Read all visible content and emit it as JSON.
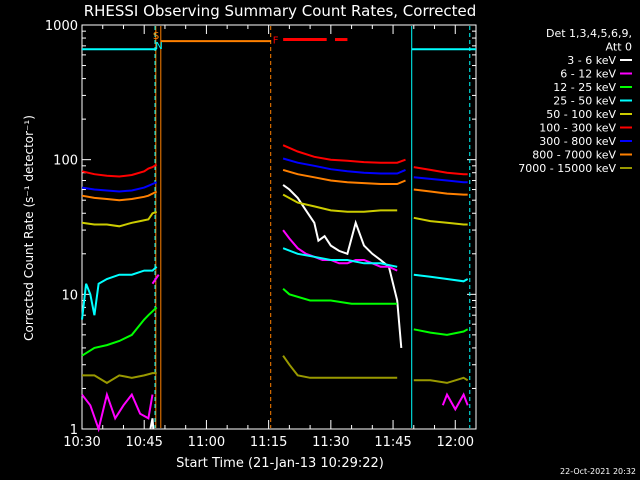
{
  "chart_data": {
    "type": "line",
    "title": "RHESSI Observing Summary Count Rates, Corrected",
    "xlabel": "Start Time (21-Jan-13 10:29:22)",
    "ylabel": "Corrected Count Rate (s⁻¹ detector⁻¹)",
    "y_scale": "log",
    "ylim": [
      1,
      1000
    ],
    "xlim_minutes_after_1030": [
      0,
      95
    ],
    "x_ticks": [
      "10:30",
      "10:45",
      "11:00",
      "11:15",
      "11:30",
      "11:45",
      "12:00"
    ],
    "x_tick_minutes": [
      0,
      15,
      30,
      45,
      60,
      75,
      90
    ],
    "y_ticks": [
      "1",
      "10",
      "100",
      "1000"
    ],
    "y_tick_values": [
      1,
      10,
      100,
      1000
    ],
    "legend_header": [
      "Det 1,3,4,5,6,9,",
      "Att 0"
    ],
    "legend_position": "outside-right",
    "series": [
      {
        "name": "3 - 6 keV",
        "color": "#ffffff",
        "segments": [
          {
            "x": [
              16.5,
              17.0,
              17.2
            ],
            "y": [
              1.0,
              1.2,
              1.0
            ]
          },
          {
            "x": [
              48.5,
              50,
              52,
              54,
              56,
              57,
              58.5,
              60,
              62,
              64,
              66,
              68,
              70,
              72,
              74,
              76,
              77
            ],
            "y": [
              65,
              60,
              52,
              42,
              34,
              25,
              27,
              23,
              21,
              20,
              34,
              23,
              20,
              18,
              16,
              9,
              4
            ]
          }
        ]
      },
      {
        "name": "6 - 12 keV",
        "color": "#ff00ff",
        "segments": [
          {
            "x": [
              0,
              2,
              4,
              6,
              8,
              10,
              12,
              14,
              16,
              17
            ],
            "y": [
              1.8,
              1.5,
              1.0,
              1.8,
              1.2,
              1.5,
              1.8,
              1.3,
              1.2,
              1.8
            ]
          },
          {
            "x": [
              17,
              18.5
            ],
            "y": [
              12,
              14
            ]
          },
          {
            "x": [
              48.5,
              50,
              52,
              54,
              56,
              58,
              60,
              62,
              64,
              66,
              68,
              70,
              72,
              74,
              76
            ],
            "y": [
              30,
              26,
              22,
              20,
              19,
              18,
              18,
              17,
              17,
              18,
              18,
              17,
              16,
              16,
              15
            ]
          },
          {
            "x": [
              87,
              88,
              90,
              92,
              93
            ],
            "y": [
              1.5,
              1.8,
              1.4,
              1.8,
              1.5
            ]
          }
        ]
      },
      {
        "name": "12 - 25 keV",
        "color": "#00ff00",
        "segments": [
          {
            "x": [
              0,
              3,
              6,
              9,
              12,
              15,
              16,
              18
            ],
            "y": [
              3.5,
              4.0,
              4.2,
              4.5,
              5.0,
              6.5,
              7,
              8
            ]
          },
          {
            "x": [
              48.5,
              50,
              55,
              60,
              65,
              70,
              75,
              76
            ],
            "y": [
              11,
              10,
              9,
              9,
              8.5,
              8.5,
              8.5,
              8.5
            ]
          },
          {
            "x": [
              80,
              84,
              88,
              92,
              93
            ],
            "y": [
              5.5,
              5.2,
              5.0,
              5.3,
              5.5
            ]
          }
        ]
      },
      {
        "name": "25 - 50 keV",
        "color": "#00ffff",
        "segments": [
          {
            "x": [
              0,
              1,
              2,
              3,
              4,
              6,
              9,
              12,
              15,
              17,
              18
            ],
            "y": [
              6.5,
              12,
              10,
              7,
              12,
              13,
              14,
              14,
              15,
              15,
              16
            ]
          },
          {
            "x": [
              48.5,
              52,
              56,
              60,
              64,
              68,
              72,
              76
            ],
            "y": [
              22,
              20,
              19,
              18,
              18,
              17,
              17,
              16
            ]
          },
          {
            "x": [
              80,
              84,
              88,
              92,
              93
            ],
            "y": [
              14,
              13.5,
              13,
              12.5,
              13
            ]
          }
        ]
      },
      {
        "name": "50 - 100 keV",
        "color": "#cccc00",
        "segments": [
          {
            "x": [
              0,
              3,
              6,
              9,
              12,
              14,
              16,
              17,
              18
            ],
            "y": [
              34,
              33,
              33,
              32,
              34,
              35,
              36,
              40,
              41
            ]
          },
          {
            "x": [
              48.5,
              52,
              56,
              60,
              64,
              68,
              72,
              76
            ],
            "y": [
              55,
              48,
              45,
              42,
              41,
              41,
              42,
              42
            ]
          },
          {
            "x": [
              80,
              84,
              88,
              92,
              93
            ],
            "y": [
              37,
              35,
              34,
              33,
              33
            ]
          }
        ]
      },
      {
        "name": "100 - 300 keV",
        "color": "#ff0000",
        "segments": [
          {
            "x": [
              0,
              3,
              6,
              9,
              12,
              15,
              16,
              17,
              18
            ],
            "y": [
              82,
              78,
              76,
              75,
              77,
              82,
              86,
              88,
              92
            ]
          },
          {
            "x": [
              48.5,
              52,
              56,
              60,
              64,
              68,
              72,
              76,
              78
            ],
            "y": [
              128,
              115,
              105,
              100,
              98,
              96,
              95,
              95,
              100
            ]
          },
          {
            "x": [
              80,
              84,
              88,
              92,
              93
            ],
            "y": [
              88,
              84,
              80,
              78,
              78
            ]
          }
        ]
      },
      {
        "name": "300 - 800 keV",
        "color": "#0000ff",
        "segments": [
          {
            "x": [
              0,
              3,
              6,
              9,
              12,
              15,
              16,
              17,
              18
            ],
            "y": [
              62,
              60,
              59,
              58,
              59,
              62,
              64,
              66,
              68
            ]
          },
          {
            "x": [
              48.5,
              52,
              56,
              60,
              64,
              68,
              72,
              76,
              78
            ],
            "y": [
              102,
              95,
              90,
              85,
              82,
              80,
              79,
              79,
              84
            ]
          },
          {
            "x": [
              80,
              84,
              88,
              92,
              93
            ],
            "y": [
              74,
              72,
              70,
              68,
              68
            ]
          }
        ]
      },
      {
        "name": "800 - 7000 keV",
        "color": "#ff8000",
        "segments": [
          {
            "x": [
              0,
              3,
              6,
              9,
              12,
              15,
              16,
              17,
              18
            ],
            "y": [
              54,
              52,
              51,
              50,
              51,
              53,
              54,
              56,
              58
            ]
          },
          {
            "x": [
              19,
              45.5
            ],
            "y": [
              760,
              760
            ]
          },
          {
            "x": [
              48.5,
              52,
              56,
              60,
              64,
              68,
              72,
              76,
              78
            ],
            "y": [
              84,
              78,
              74,
              70,
              68,
              67,
              66,
              66,
              70
            ]
          },
          {
            "x": [
              80,
              84,
              88,
              92,
              93
            ],
            "y": [
              60,
              58,
              56,
              55,
              55
            ]
          }
        ]
      },
      {
        "name": "7000 - 15000 keV",
        "color": "#999900",
        "segments": [
          {
            "x": [
              0,
              3,
              6,
              9,
              12,
              15,
              17,
              18
            ],
            "y": [
              2.5,
              2.5,
              2.2,
              2.5,
              2.4,
              2.5,
              2.6,
              2.6
            ]
          },
          {
            "x": [
              48.5,
              50,
              52,
              55,
              60,
              65,
              70,
              75,
              76
            ],
            "y": [
              3.5,
              3.0,
              2.5,
              2.4,
              2.4,
              2.4,
              2.4,
              2.4,
              2.4
            ]
          },
          {
            "x": [
              80,
              84,
              88,
              92,
              93
            ],
            "y": [
              2.3,
              2.3,
              2.2,
              2.4,
              2.3
            ]
          }
        ]
      }
    ],
    "annotations": [
      {
        "text": "S",
        "x_minutes": 17.8,
        "color": "#ff8000"
      },
      {
        "text": "N",
        "x_minutes": 18.4,
        "color": "#00ffff"
      },
      {
        "text": "F",
        "x_minutes": 46,
        "color": "#ff0000",
        "y": 780
      }
    ],
    "flare_bar": {
      "color": "#ff0000",
      "y": 780,
      "x_segments": [
        [
          48.5,
          59
        ],
        [
          61,
          64
        ]
      ]
    },
    "attenuator_line": {
      "color": "#00ffff",
      "y": 660,
      "x_segments": [
        [
          0,
          18
        ],
        [
          79.5,
          95
        ]
      ]
    },
    "saa_lines": {
      "color": "#ff8000",
      "solid_x": [
        17.8,
        19.0
      ],
      "dashed_x": [
        45.5
      ]
    },
    "night_lines": {
      "color": "#00ffff",
      "dashed_x": [
        17.6,
        93.5
      ],
      "solid_x": [
        79.5
      ]
    }
  },
  "footer": {
    "timestamp": "22-Oct-2021 20:32"
  }
}
